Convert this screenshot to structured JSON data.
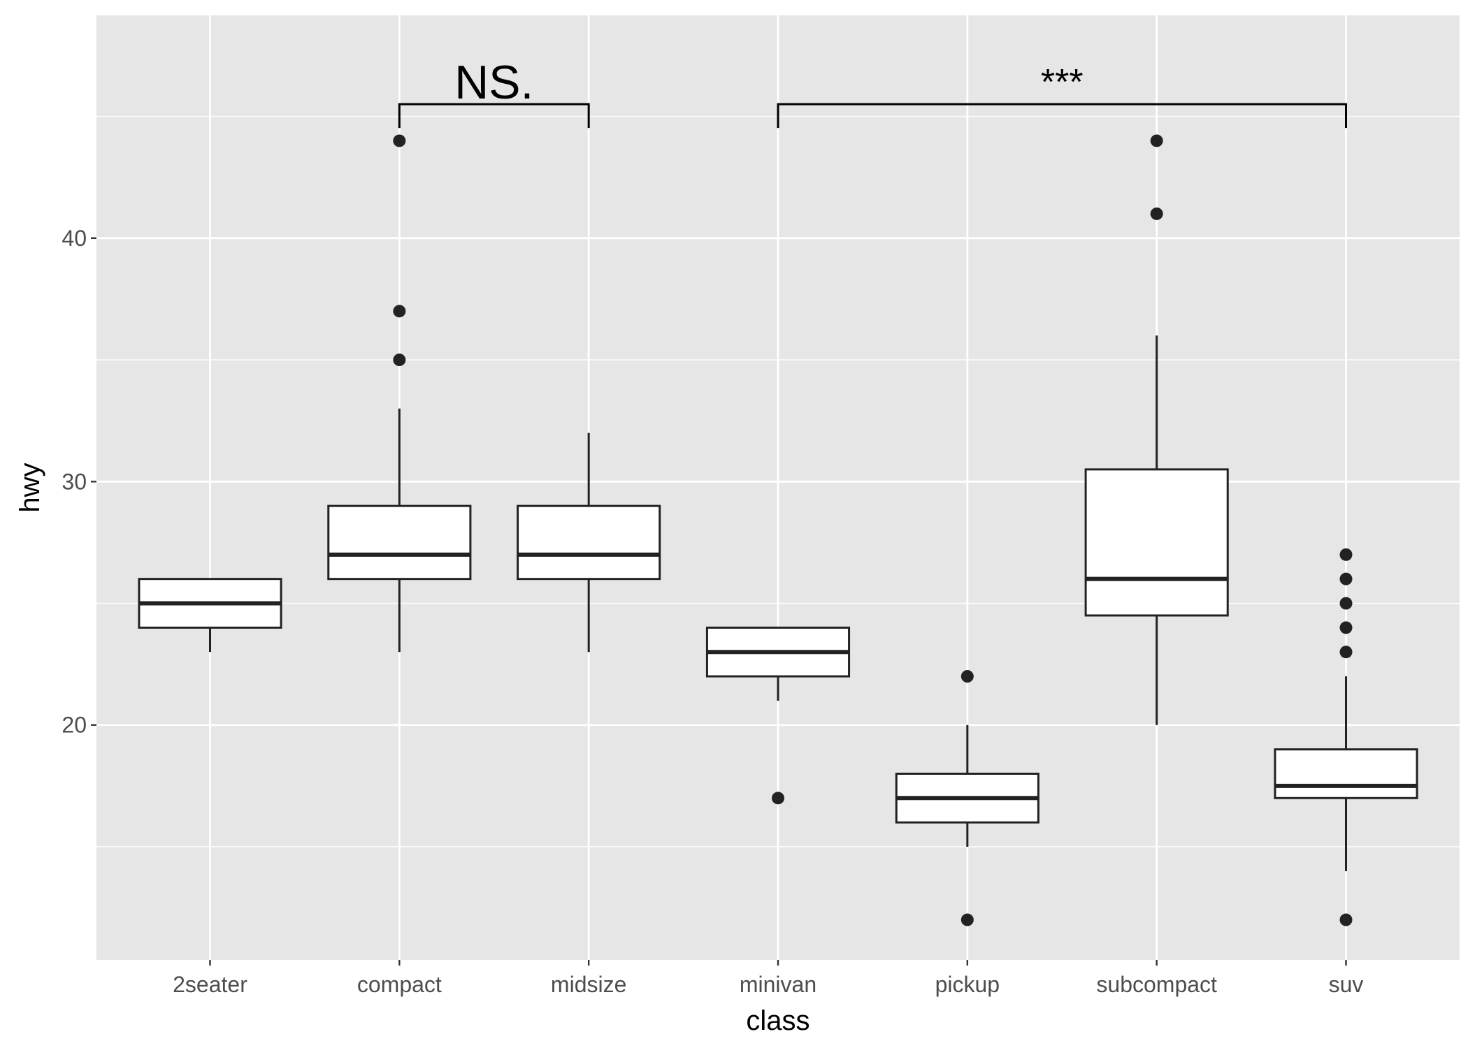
{
  "chart_data": {
    "type": "box",
    "title": "",
    "xlabel": "class",
    "ylabel": "hwy",
    "categories": [
      "2seater",
      "compact",
      "midsize",
      "minivan",
      "pickup",
      "subcompact",
      "suv"
    ],
    "ylim": [
      10.35,
      49.15
    ],
    "yticks": [
      20,
      30,
      40
    ],
    "grid": true,
    "legend": "none",
    "boxes": [
      {
        "category": "2seater",
        "whisker_low": 23,
        "q1": 24,
        "median": 25,
        "q3": 26,
        "whisker_high": 26,
        "outliers": []
      },
      {
        "category": "compact",
        "whisker_low": 23,
        "q1": 26,
        "median": 27,
        "q3": 29,
        "whisker_high": 33,
        "outliers": [
          35,
          37,
          44
        ]
      },
      {
        "category": "midsize",
        "whisker_low": 23,
        "q1": 26,
        "median": 27,
        "q3": 29,
        "whisker_high": 32,
        "outliers": []
      },
      {
        "category": "minivan",
        "whisker_low": 21,
        "q1": 22,
        "median": 23,
        "q3": 24,
        "whisker_high": 24,
        "outliers": [
          17
        ]
      },
      {
        "category": "pickup",
        "whisker_low": 15,
        "q1": 16,
        "median": 17,
        "q3": 18,
        "whisker_high": 20,
        "outliers": [
          12,
          22
        ]
      },
      {
        "category": "subcompact",
        "whisker_low": 20,
        "q1": 24.5,
        "median": 26,
        "q3": 30.5,
        "whisker_high": 36,
        "outliers": [
          41,
          44
        ]
      },
      {
        "category": "suv",
        "whisker_low": 14,
        "q1": 17,
        "median": 17.5,
        "q3": 19,
        "whisker_high": 22,
        "outliers": [
          12,
          23,
          24,
          25,
          26,
          27
        ]
      }
    ],
    "annotations": [
      {
        "from": "compact",
        "to": "midsize",
        "y": 45.5,
        "label": "NS."
      },
      {
        "from": "minivan",
        "to": "suv",
        "y": 45.5,
        "label": "***"
      }
    ],
    "colors": {
      "panel": "#e6e6e6",
      "grid": "#ffffff",
      "box_fill": "#ffffff",
      "box_stroke": "#222222",
      "point": "#222222"
    }
  }
}
